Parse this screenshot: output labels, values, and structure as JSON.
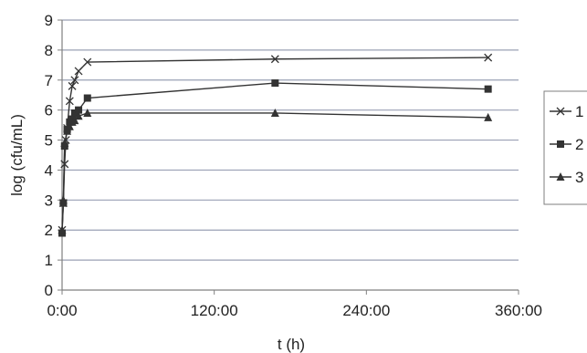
{
  "chart_data": {
    "type": "line",
    "xlabel": "t (h)",
    "ylabel": "log (cfu/mL)",
    "xlim": [
      0,
      360
    ],
    "ylim": [
      0,
      9
    ],
    "x_ticks": [
      0,
      120,
      240,
      360
    ],
    "x_tick_labels": [
      "0:00",
      "120:00",
      "240:00",
      "360:00"
    ],
    "y_ticks": [
      0,
      1,
      2,
      3,
      4,
      5,
      6,
      7,
      8,
      9
    ],
    "y_tick_labels": [
      "0",
      "1",
      "2",
      "3",
      "4",
      "5",
      "6",
      "7",
      "8",
      "9"
    ],
    "grid": "horizontal",
    "legend_position": "right",
    "colors": {
      "grid": "#9aa0b4",
      "axis": "#808080",
      "series": "#333333",
      "legend_border": "#7f7f7f"
    },
    "series": [
      {
        "name": "1",
        "marker": "x",
        "points": [
          [
            0,
            2.0
          ],
          [
            1,
            2.9
          ],
          [
            2,
            4.2
          ],
          [
            3,
            5.0
          ],
          [
            4,
            5.4
          ],
          [
            6,
            6.3
          ],
          [
            8,
            6.8
          ],
          [
            10,
            7.0
          ],
          [
            13,
            7.3
          ],
          [
            20,
            7.6
          ],
          [
            168,
            7.7
          ],
          [
            336,
            7.75
          ]
        ]
      },
      {
        "name": "2",
        "marker": "square",
        "points": [
          [
            0,
            1.9
          ],
          [
            1,
            2.9
          ],
          [
            2,
            4.8
          ],
          [
            4,
            5.35
          ],
          [
            6,
            5.6
          ],
          [
            8,
            5.7
          ],
          [
            10,
            5.9
          ],
          [
            13,
            6.0
          ],
          [
            20,
            6.4
          ],
          [
            168,
            6.9
          ],
          [
            336,
            6.7
          ]
        ]
      },
      {
        "name": "3",
        "marker": "triangle",
        "points": [
          [
            0,
            2.0
          ],
          [
            1,
            3.0
          ],
          [
            2,
            4.9
          ],
          [
            4,
            5.3
          ],
          [
            6,
            5.45
          ],
          [
            8,
            5.6
          ],
          [
            10,
            5.65
          ],
          [
            13,
            5.8
          ],
          [
            20,
            5.9
          ],
          [
            168,
            5.9
          ],
          [
            336,
            5.75
          ]
        ]
      }
    ]
  }
}
